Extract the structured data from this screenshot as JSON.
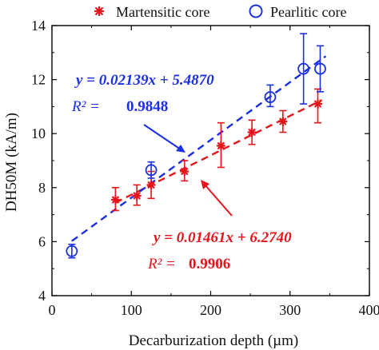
{
  "chart_data": {
    "type": "scatter",
    "xlabel": "Decarburization depth (µm)",
    "ylabel": "DH50M (kA/m)",
    "xlim": [
      0,
      400
    ],
    "ylim": [
      4,
      14
    ],
    "xticks": [
      "0",
      "100",
      "200",
      "300",
      "400"
    ],
    "yticks": [
      "4",
      "6",
      "8",
      "10",
      "12",
      "14"
    ],
    "legend_position": "top",
    "series": [
      {
        "name": "Martensitic core",
        "marker": "asterisk",
        "color": "#e8141b",
        "points": [
          {
            "x": 80,
            "y": 7.55,
            "err_low": 0.4,
            "err_high": 0.45
          },
          {
            "x": 107,
            "y": 7.7,
            "err_low": 0.35,
            "err_high": 0.4
          },
          {
            "x": 125,
            "y": 8.1,
            "err_low": 0.5,
            "err_high": 0.5
          },
          {
            "x": 167,
            "y": 8.6,
            "err_low": 0.35,
            "err_high": 0.4
          },
          {
            "x": 213,
            "y": 9.55,
            "err_low": 0.8,
            "err_high": 0.85
          },
          {
            "x": 252,
            "y": 10.05,
            "err_low": 0.45,
            "err_high": 0.45
          },
          {
            "x": 291,
            "y": 10.45,
            "err_low": 0.4,
            "err_high": 0.4
          },
          {
            "x": 335,
            "y": 11.1,
            "err_low": 0.7,
            "err_high": 0.55
          }
        ],
        "fit": {
          "slope": 0.01461,
          "intercept": 6.274,
          "x_range": [
            80,
            340
          ]
        }
      },
      {
        "name": "Pearlitic core",
        "marker": "circle",
        "color": "#1b2ee8",
        "points": [
          {
            "x": 25,
            "y": 5.65,
            "err_low": 0.25,
            "err_high": 0.25
          },
          {
            "x": 125,
            "y": 8.65,
            "err_low": 0.3,
            "err_high": 0.3
          },
          {
            "x": 275,
            "y": 11.35,
            "err_low": 0.35,
            "err_high": 0.45
          },
          {
            "x": 317,
            "y": 12.4,
            "err_low": 1.3,
            "err_high": 1.3
          },
          {
            "x": 338,
            "y": 12.4,
            "err_low": 0.85,
            "err_high": 0.85
          }
        ],
        "fit": {
          "slope": 0.02139,
          "intercept": 5.487,
          "x_range": [
            25,
            345
          ]
        }
      }
    ],
    "annotations": [
      {
        "series": 1,
        "equation": "y = 0.02139x + 5.4870",
        "r2_label": "R² = ",
        "r2_value": "0.9848"
      },
      {
        "series": 0,
        "equation": "y = 0.01461x + 6.2740",
        "r2_label": "R² = ",
        "r2_value": "0.9906"
      }
    ]
  }
}
